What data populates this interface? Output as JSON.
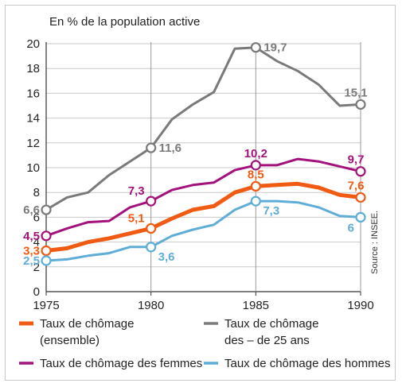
{
  "chart_data": {
    "type": "line",
    "unit_label": "En % de la population active",
    "source": "Source : INSEE.",
    "x": [
      1975,
      1976,
      1977,
      1978,
      1979,
      1980,
      1981,
      1982,
      1983,
      1984,
      1985,
      1986,
      1987,
      1988,
      1989,
      1990
    ],
    "x_ticks": [
      "1975",
      "1980",
      "1985",
      "1990"
    ],
    "x_tick_values": [
      1975,
      1980,
      1985,
      1990
    ],
    "y_ticks": [
      "0",
      "2",
      "4",
      "6",
      "8",
      "10",
      "12",
      "14",
      "16",
      "18",
      "20"
    ],
    "y_tick_values": [
      0,
      2,
      4,
      6,
      8,
      10,
      12,
      14,
      16,
      18,
      20
    ],
    "xlim": [
      1975,
      1990
    ],
    "ylim": [
      0,
      20
    ],
    "series": [
      {
        "key": "jeunes",
        "name": "Taux de chômage\ndes – de 25 ans",
        "legend_lines": [
          "Taux de chômage",
          "des – de 25 ans"
        ],
        "color": "#7a7a7a",
        "values": [
          6.6,
          7.6,
          8.0,
          9.4,
          10.5,
          11.6,
          13.9,
          15.1,
          16.1,
          19.6,
          19.7,
          18.6,
          17.8,
          16.7,
          15.0,
          15.1
        ],
        "labels": [
          {
            "year": 1975,
            "text": "6,6",
            "side": "left"
          },
          {
            "year": 1980,
            "text": "11,6",
            "side": "right"
          },
          {
            "year": 1985,
            "text": "19,7",
            "side": "right"
          },
          {
            "year": 1990,
            "text": "15,1",
            "side": "above"
          }
        ]
      },
      {
        "key": "femmes",
        "name": "Taux de chômage des femmes",
        "legend_lines": [
          "Taux de chômage des femmes"
        ],
        "color": "#a3127c",
        "values": [
          4.5,
          5.1,
          5.6,
          5.7,
          6.8,
          7.3,
          8.2,
          8.6,
          8.8,
          9.8,
          10.2,
          10.2,
          10.7,
          10.5,
          10.1,
          9.7
        ],
        "labels": [
          {
            "year": 1975,
            "text": "4,5",
            "side": "left"
          },
          {
            "year": 1980,
            "text": "7,3",
            "side": "above-left"
          },
          {
            "year": 1985,
            "text": "10,2",
            "side": "above"
          },
          {
            "year": 1990,
            "text": "9,7",
            "side": "above"
          }
        ]
      },
      {
        "key": "ensemble",
        "name": "Taux de chômage\n(ensemble)",
        "legend_lines": [
          "Taux de chômage",
          "(ensemble)"
        ],
        "color": "#f05a12",
        "values": [
          3.3,
          3.5,
          4.0,
          4.3,
          4.7,
          5.1,
          5.9,
          6.6,
          6.9,
          8.0,
          8.5,
          8.6,
          8.7,
          8.4,
          7.8,
          7.6
        ],
        "labels": [
          {
            "year": 1975,
            "text": "3,3",
            "side": "left"
          },
          {
            "year": 1980,
            "text": "5,1",
            "side": "above-left"
          },
          {
            "year": 1985,
            "text": "8,5",
            "side": "above"
          },
          {
            "year": 1990,
            "text": "7,6",
            "side": "above"
          }
        ]
      },
      {
        "key": "hommes",
        "name": "Taux de chômage des hommes",
        "legend_lines": [
          "Taux de chômage des hommes"
        ],
        "color": "#5fadd6",
        "values": [
          2.5,
          2.6,
          2.9,
          3.1,
          3.6,
          3.6,
          4.5,
          5.0,
          5.4,
          6.6,
          7.3,
          7.3,
          7.2,
          6.8,
          6.1,
          6.0
        ],
        "labels": [
          {
            "year": 1975,
            "text": "2,5",
            "side": "left"
          },
          {
            "year": 1980,
            "text": "3,6",
            "side": "right-below"
          },
          {
            "year": 1985,
            "text": "7,3",
            "side": "right-below"
          },
          {
            "year": 1990,
            "text": "6",
            "side": "below-left"
          }
        ]
      }
    ],
    "marked_years": [
      1975,
      1980,
      1985,
      1990
    ],
    "legend": [
      {
        "series": "ensemble"
      },
      {
        "series": "jeunes"
      },
      {
        "series": "femmes"
      },
      {
        "series": "hommes"
      }
    ],
    "grid": "horizontal"
  }
}
